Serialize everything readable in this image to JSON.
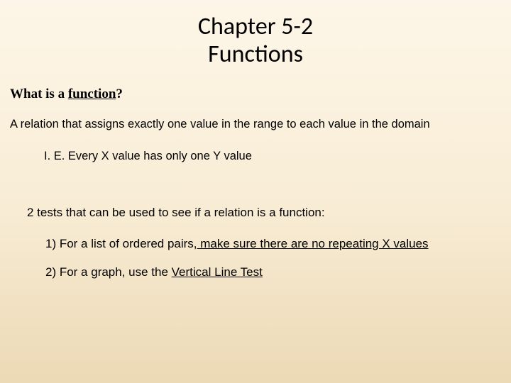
{
  "title_line1": "Chapter 5-2",
  "title_line2": "Functions",
  "question_prefix": "What is a ",
  "question_term": "function",
  "question_suffix": "?",
  "definition": "A relation that assigns exactly one value in the range to each value in the domain",
  "ie": "I. E.   Every X value has only one Y value",
  "tests_intro": "2 tests that can be used to see if a relation is a function:",
  "item1_prefix": "1)  For a list of ordered pairs,",
  "item1_under": " make sure there are no repeating X values",
  "item2_prefix": "2)  For a graph, use the ",
  "item2_under": "Vertical Line Test"
}
